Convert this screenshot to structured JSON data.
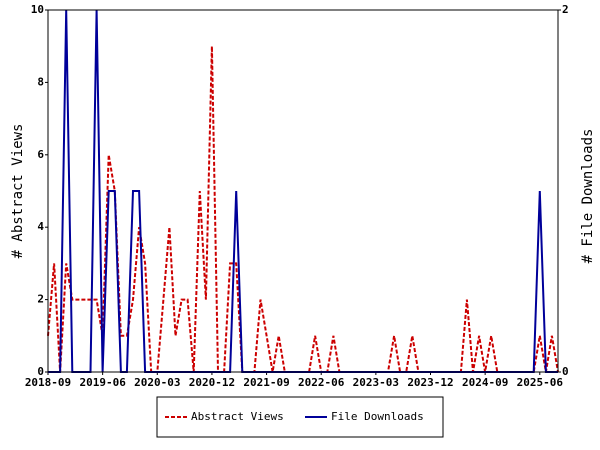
{
  "chart_data": {
    "type": "line",
    "ylabel": "# Abstract Views",
    "y2label": "# File Downloads",
    "x": [
      "2018-09",
      "2018-10",
      "2018-11",
      "2018-12",
      "2019-01",
      "2019-02",
      "2019-03",
      "2019-04",
      "2019-05",
      "2019-06",
      "2019-07",
      "2019-08",
      "2019-09",
      "2019-10",
      "2019-11",
      "2019-12",
      "2020-01",
      "2020-02",
      "2020-03",
      "2020-04",
      "2020-05",
      "2020-06",
      "2020-07",
      "2020-08",
      "2020-09",
      "2020-10",
      "2020-11",
      "2020-12",
      "2021-01",
      "2021-02",
      "2021-03",
      "2021-04",
      "2021-05",
      "2021-06",
      "2021-07",
      "2021-08",
      "2021-09",
      "2021-10",
      "2021-11",
      "2021-12",
      "2022-01",
      "2022-02",
      "2022-03",
      "2022-04",
      "2022-05",
      "2022-06",
      "2022-07",
      "2022-08",
      "2022-09",
      "2022-10",
      "2022-11",
      "2022-12",
      "2023-01",
      "2023-02",
      "2023-03",
      "2023-04",
      "2023-05",
      "2023-06",
      "2023-07",
      "2023-08",
      "2023-09",
      "2023-10",
      "2023-11",
      "2023-12",
      "2024-01",
      "2024-02",
      "2024-03",
      "2024-04",
      "2024-05",
      "2024-06",
      "2024-07",
      "2024-08",
      "2024-09",
      "2024-10",
      "2024-11",
      "2024-12",
      "2025-01",
      "2025-02",
      "2025-03",
      "2025-04",
      "2025-05",
      "2025-06",
      "2025-07",
      "2025-08",
      "2025-09"
    ],
    "xticks": [
      "2018-09",
      "2019-06",
      "2020-03",
      "2020-12",
      "2021-09",
      "2022-06",
      "2023-03",
      "2023-12",
      "2024-09",
      "2025-06"
    ],
    "ylim": [
      0,
      10
    ],
    "yticks": [
      0,
      2,
      4,
      6,
      8,
      10
    ],
    "y2lim": [
      0,
      2
    ],
    "y2ticks": [
      0,
      2
    ],
    "legend": "bottom",
    "series": [
      {
        "name": "Abstract Views",
        "color": "#cc0000",
        "dash": true,
        "values": [
          1,
          3,
          0,
          3,
          2,
          2,
          2,
          2,
          2,
          1,
          6,
          5,
          1,
          1,
          2,
          4,
          3,
          0,
          0,
          2,
          4,
          1,
          2,
          2,
          0,
          5,
          2,
          9,
          0,
          0,
          3,
          3,
          0,
          0,
          0,
          2,
          1,
          0,
          1,
          0,
          0,
          0,
          0,
          0,
          1,
          0,
          0,
          1,
          0,
          0,
          0,
          0,
          0,
          0,
          0,
          0,
          0,
          1,
          0,
          0,
          1,
          0,
          0,
          0,
          0,
          0,
          0,
          0,
          0,
          2,
          0,
          1,
          0,
          1,
          0,
          0,
          0,
          0,
          0,
          0,
          0,
          1,
          0,
          1,
          0
        ]
      },
      {
        "name": "File Downloads",
        "color": "#000099",
        "axis": "y2",
        "values": [
          0,
          0,
          0,
          2,
          0,
          0,
          0,
          0,
          2,
          0,
          1,
          1,
          0,
          0,
          1,
          1,
          0,
          0,
          0,
          0,
          0,
          0,
          0,
          0,
          0,
          0,
          0,
          0,
          0,
          0,
          0,
          1,
          0,
          0,
          0,
          0,
          0,
          0,
          0,
          0,
          0,
          0,
          0,
          0,
          0,
          0,
          0,
          0,
          0,
          0,
          0,
          0,
          0,
          0,
          0,
          0,
          0,
          0,
          0,
          0,
          0,
          0,
          0,
          0,
          0,
          0,
          0,
          0,
          0,
          0,
          0,
          0,
          0,
          0,
          0,
          0,
          0,
          0,
          0,
          0,
          0,
          1,
          0,
          0,
          0
        ]
      }
    ]
  }
}
